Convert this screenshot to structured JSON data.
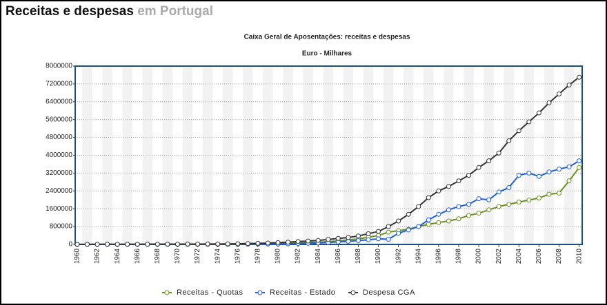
{
  "header": {
    "title": "Receitas e despesas",
    "title_suffix": "em Portugal"
  },
  "chart_data": {
    "type": "line",
    "title": "Caixa Geral de Aposentações: receitas e despesas",
    "subtitle": "Euro - Milhares",
    "x": [
      1960,
      1961,
      1962,
      1963,
      1964,
      1965,
      1966,
      1967,
      1968,
      1969,
      1970,
      1971,
      1972,
      1973,
      1974,
      1975,
      1976,
      1977,
      1978,
      1979,
      1980,
      1981,
      1982,
      1983,
      1984,
      1985,
      1986,
      1987,
      1988,
      1989,
      1990,
      1991,
      1992,
      1993,
      1994,
      1995,
      1996,
      1997,
      1998,
      1999,
      2000,
      2001,
      2002,
      2003,
      2004,
      2005,
      2006,
      2007,
      2008,
      2009,
      2010
    ],
    "xlim": [
      1959.8,
      2010.3
    ],
    "xticks": [
      1960,
      1962,
      1964,
      1966,
      1968,
      1970,
      1972,
      1974,
      1976,
      1978,
      1980,
      1982,
      1984,
      1986,
      1988,
      1990,
      1992,
      1994,
      1996,
      1998,
      2000,
      2002,
      2004,
      2006,
      2008,
      2010
    ],
    "ylim": [
      0,
      8000000
    ],
    "yticks": [
      0,
      800000,
      1600000,
      2400000,
      3200000,
      4000000,
      4800000,
      5600000,
      6400000,
      7200000,
      8000000
    ],
    "grid": true,
    "legend": "bottom",
    "series": [
      {
        "name": "Receitas - Quotas",
        "color": "#6b8e23",
        "values": [
          3000,
          3300,
          3600,
          4000,
          4400,
          4800,
          5300,
          5800,
          6400,
          7000,
          7700,
          8500,
          9400,
          10400,
          11500,
          13000,
          16000,
          20000,
          25000,
          32000,
          40000,
          50000,
          65000,
          80000,
          100000,
          125000,
          160000,
          200000,
          250000,
          320000,
          400000,
          550000,
          620000,
          680000,
          800000,
          900000,
          980000,
          1050000,
          1150000,
          1300000,
          1400000,
          1550000,
          1700000,
          1800000,
          1900000,
          1990000,
          2080000,
          2250000,
          2300000,
          2850000,
          3450000
        ]
      },
      {
        "name": "Receitas - Estado",
        "color": "#1f5fd6",
        "values": [
          1000,
          1100,
          1200,
          1300,
          1400,
          1500,
          1700,
          1900,
          2100,
          2300,
          2500,
          2800,
          3100,
          3500,
          4000,
          5000,
          7000,
          9000,
          12000,
          15000,
          20000,
          28000,
          38000,
          50000,
          65000,
          85000,
          110000,
          140000,
          170000,
          210000,
          250000,
          230000,
          500000,
          650000,
          800000,
          1100000,
          1350000,
          1550000,
          1700000,
          1800000,
          2050000,
          2000000,
          2350000,
          2550000,
          3100000,
          3200000,
          3050000,
          3250000,
          3380000,
          3480000,
          3750000
        ]
      },
      {
        "name": "Despesa CGA",
        "color": "#333333",
        "values": [
          5000,
          5500,
          6000,
          6500,
          7000,
          8000,
          9000,
          10000,
          11000,
          12000,
          13000,
          15000,
          17000,
          19000,
          21000,
          25000,
          30000,
          40000,
          50000,
          60000,
          80000,
          100000,
          130000,
          150000,
          180000,
          220000,
          270000,
          310000,
          380000,
          480000,
          580000,
          800000,
          1050000,
          1350000,
          1700000,
          2100000,
          2400000,
          2600000,
          2850000,
          3100000,
          3450000,
          3750000,
          4100000,
          4650000,
          5100000,
          5500000,
          5900000,
          6350000,
          6750000,
          7150000,
          7500000
        ]
      }
    ]
  }
}
